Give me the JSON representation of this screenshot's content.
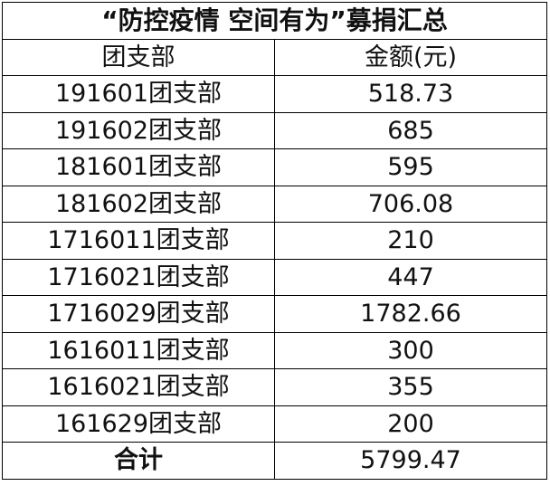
{
  "title": "“防控疫情 空间有为”募捐汇总",
  "headers": {
    "branch": "团支部",
    "amount": "金额(元)"
  },
  "rows": [
    {
      "branch": "191601团支部",
      "amount": "518.73"
    },
    {
      "branch": "191602团支部",
      "amount": "685"
    },
    {
      "branch": "181601团支部",
      "amount": "595"
    },
    {
      "branch": "181602团支部",
      "amount": "706.08"
    },
    {
      "branch": "1716011团支部",
      "amount": "210"
    },
    {
      "branch": "1716021团支部",
      "amount": "447"
    },
    {
      "branch": "1716029团支部",
      "amount": "1782.66"
    },
    {
      "branch": "1616011团支部",
      "amount": "300"
    },
    {
      "branch": "1616021团支部",
      "amount": "355"
    },
    {
      "branch": "161629团支部",
      "amount": "200"
    }
  ],
  "total": {
    "label": "合计",
    "amount": "5799.47"
  }
}
